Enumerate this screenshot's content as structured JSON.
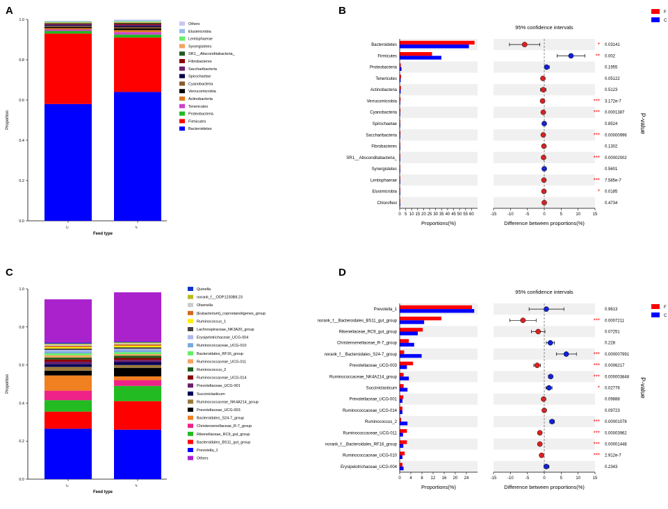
{
  "panel_labels": [
    "A",
    "B",
    "C",
    "D"
  ],
  "chart_data": [
    {
      "panel": "A",
      "type": "bar",
      "stacked": true,
      "xlabel": "Feed type",
      "ylabel": "Proportion",
      "categories": [
        "C",
        "F"
      ],
      "ylim": [
        0,
        1
      ],
      "yticks": [
        "0.0",
        "0.2",
        "0.4",
        "0.6",
        "0.8",
        "1.0"
      ],
      "series": [
        {
          "name": "Bacteroidetes",
          "color": "#0000FF",
          "values": [
            0.58,
            0.64
          ]
        },
        {
          "name": "Firmicutes",
          "color": "#FF0000",
          "values": [
            0.35,
            0.27
          ]
        },
        {
          "name": "Proteobacteria",
          "color": "#22BB22",
          "values": [
            0.013,
            0.015
          ]
        },
        {
          "name": "Tenericutes",
          "color": "#CC44CC",
          "values": [
            0.007,
            0.012
          ]
        },
        {
          "name": "Actinobacteria",
          "color": "#E07A1F",
          "values": [
            0.007,
            0.01
          ]
        },
        {
          "name": "Verrucomicrobia",
          "color": "#000000",
          "values": [
            0.006,
            0.008
          ]
        },
        {
          "name": "Cyanobacteria",
          "color": "#8B5A2B",
          "values": [
            0.005,
            0.007
          ]
        },
        {
          "name": "Spirochaetae",
          "color": "#00004D",
          "values": [
            0.004,
            0.006
          ]
        },
        {
          "name": "Saccharibacteria",
          "color": "#6B1F6B",
          "values": [
            0.004,
            0.006
          ]
        },
        {
          "name": "Fibrobacteres",
          "color": "#8B0000",
          "values": [
            0.003,
            0.005
          ]
        },
        {
          "name": "SR1__Absconditabacteria_",
          "color": "#1F5C1F",
          "values": [
            0.003,
            0.004
          ]
        },
        {
          "name": "Synergistetes",
          "color": "#F4A460",
          "values": [
            0.003,
            0.004
          ]
        },
        {
          "name": "Lentisphaerae",
          "color": "#66EE66",
          "values": [
            0.003,
            0.004
          ]
        },
        {
          "name": "Elusimicrobia",
          "color": "#99BBEE",
          "values": [
            0.003,
            0.004
          ]
        },
        {
          "name": "Others",
          "color": "#C8C8F0",
          "values": [
            0.002,
            0.004
          ]
        }
      ]
    },
    {
      "panel": "B",
      "type": "bar",
      "title": "95% confidence intervals",
      "left_xlabel": "Proportions(%)",
      "right_xlabel": "Difference between proportions(%)",
      "side_label": "P-value",
      "left_xlim": [
        0,
        65
      ],
      "left_xticks": [
        0,
        5,
        10,
        15,
        20,
        25,
        30,
        35,
        40,
        45,
        50,
        55,
        60
      ],
      "right_xlim": [
        -15,
        15
      ],
      "right_xticks": [
        -15,
        -10,
        -5,
        0,
        5,
        10,
        15
      ],
      "legend": [
        {
          "name": "F",
          "color": "#FF0000"
        },
        {
          "name": "C",
          "color": "#0000FF"
        }
      ],
      "rows": [
        {
          "name": "Bacteroidetes",
          "F": 62.5,
          "C": 57.8,
          "diff": -5.8,
          "lo": -10.3,
          "hi": -1.3,
          "higher": "F",
          "sig": "*",
          "p": "0.03141"
        },
        {
          "name": "Firmicutes",
          "F": 27.0,
          "C": 34.8,
          "diff": 7.9,
          "lo": 3.8,
          "hi": 12.0,
          "higher": "C",
          "sig": "**",
          "p": "0.002"
        },
        {
          "name": "Proteobacteria",
          "F": 0.9,
          "C": 1.5,
          "diff": 0.7,
          "lo": 0.1,
          "hi": 1.5,
          "higher": "C",
          "sig": "",
          "p": "0.1955"
        },
        {
          "name": "Tenericutes",
          "F": 1.1,
          "C": 0.8,
          "diff": -0.4,
          "lo": -0.8,
          "hi": 0.0,
          "higher": "F",
          "sig": "",
          "p": "0.05122"
        },
        {
          "name": "Actinobacteria",
          "F": 1.0,
          "C": 0.8,
          "diff": -0.3,
          "lo": -1.1,
          "hi": 0.5,
          "higher": "F",
          "sig": "",
          "p": "0.5123"
        },
        {
          "name": "Verrucomicrobia",
          "F": 0.7,
          "C": 0.3,
          "diff": -0.5,
          "lo": -0.7,
          "hi": -0.3,
          "higher": "F",
          "sig": "***",
          "p": "3.172e-7"
        },
        {
          "name": "Cyanobacteria",
          "F": 0.6,
          "C": 0.3,
          "diff": -0.3,
          "lo": -0.5,
          "hi": -0.2,
          "higher": "F",
          "sig": "***",
          "p": "0.0001387"
        },
        {
          "name": "Spirochaetae",
          "F": 0.4,
          "C": 0.4,
          "diff": 0.0,
          "lo": -0.2,
          "hi": 0.2,
          "higher": "C",
          "sig": "",
          "p": "0.8524"
        },
        {
          "name": "Saccharibacteria",
          "F": 0.6,
          "C": 0.3,
          "diff": -0.3,
          "lo": -0.4,
          "hi": -0.2,
          "higher": "F",
          "sig": "***",
          "p": "0.00000996"
        },
        {
          "name": "Fibrobacteres",
          "F": 0.3,
          "C": 0.2,
          "diff": -0.1,
          "lo": -0.2,
          "hi": 0.0,
          "higher": "F",
          "sig": "",
          "p": "0.1302"
        },
        {
          "name": "SR1__Absconditabacteria_",
          "F": 0.3,
          "C": 0.1,
          "diff": -0.2,
          "lo": -0.3,
          "hi": -0.1,
          "higher": "F",
          "sig": "***",
          "p": "0.00002002"
        },
        {
          "name": "Synergistetes",
          "F": 0.2,
          "C": 0.2,
          "diff": 0.0,
          "lo": -0.1,
          "hi": 0.1,
          "higher": "C",
          "sig": "",
          "p": "0.5601"
        },
        {
          "name": "Lentisphaerae",
          "F": 0.2,
          "C": 0.1,
          "diff": -0.1,
          "lo": -0.15,
          "hi": -0.05,
          "higher": "F",
          "sig": "***",
          "p": "7.585e-7"
        },
        {
          "name": "Elusimicrobia",
          "F": 0.2,
          "C": 0.1,
          "diff": -0.1,
          "lo": -0.2,
          "hi": 0.0,
          "higher": "F",
          "sig": "*",
          "p": "0.0185"
        },
        {
          "name": "Chloroflexi",
          "F": 0.1,
          "C": 0.1,
          "diff": 0.0,
          "lo": -0.1,
          "hi": 0.1,
          "higher": "F",
          "sig": "",
          "p": "0.4734"
        }
      ]
    },
    {
      "panel": "C",
      "type": "bar",
      "stacked": true,
      "xlabel": "Feed type",
      "ylabel": "Proportion",
      "categories": [
        "C",
        "F"
      ],
      "ylim": [
        0,
        1
      ],
      "yticks": [
        "0.0",
        "0.2",
        "0.4",
        "0.6",
        "0.8",
        "1.0"
      ],
      "series": [
        {
          "name": "Prevotella_1",
          "color": "#0000FF",
          "values": [
            0.265,
            0.26
          ]
        },
        {
          "name": "Bacteroidales_BS11_gut_group",
          "color": "#FF0000",
          "values": [
            0.09,
            0.15
          ]
        },
        {
          "name": "Rikenellaceae_RC9_gut_group",
          "color": "#22BB22",
          "values": [
            0.06,
            0.08
          ]
        },
        {
          "name": "Christensenellaceae_R-7_group",
          "color": "#EE2288",
          "values": [
            0.05,
            0.03
          ]
        },
        {
          "name": "Bacteroidales_S24-7_group",
          "color": "#F08020",
          "values": [
            0.08,
            0.02
          ]
        },
        {
          "name": "Prevotellaceae_UCG-003",
          "color": "#000000",
          "values": [
            0.025,
            0.045
          ]
        },
        {
          "name": "Ruminococcaceae_NK4A214_group",
          "color": "#9A7A3A",
          "values": [
            0.02,
            0.015
          ]
        },
        {
          "name": "Succiniclasticum",
          "color": "#00005A",
          "values": [
            0.015,
            0.015
          ]
        },
        {
          "name": "Prevotellaceae_UCG-001",
          "color": "#6B1F6B",
          "values": [
            0.012,
            0.012
          ]
        },
        {
          "name": "Ruminococcaceae_UCG-014",
          "color": "#8B0000",
          "values": [
            0.012,
            0.01
          ]
        },
        {
          "name": "Ruminococcus_2",
          "color": "#1F5C1F",
          "values": [
            0.01,
            0.012
          ]
        },
        {
          "name": "Ruminococcaceae_UCG-011",
          "color": "#F4A460",
          "values": [
            0.012,
            0.008
          ]
        },
        {
          "name": "Bacteroidales_RF16_group",
          "color": "#66EE66",
          "values": [
            0.01,
            0.01
          ]
        },
        {
          "name": "Ruminococcaceae_UCG-010",
          "color": "#77AADD",
          "values": [
            0.01,
            0.01
          ]
        },
        {
          "name": "Erysipelotrichaceae_UCG-004",
          "color": "#AABBEE",
          "values": [
            0.008,
            0.008
          ]
        },
        {
          "name": "Lachnospiraceae_NK3A20_group",
          "color": "#444444",
          "values": [
            0.008,
            0.008
          ]
        },
        {
          "name": "Ruminococcus_1",
          "color": "#FFEE00",
          "values": [
            0.007,
            0.008
          ]
        },
        {
          "name": "[Eubacterium]_coprostanoligenes_group",
          "color": "#D2691E",
          "values": [
            0.007,
            0.007
          ]
        },
        {
          "name": "Olsenella",
          "color": "#CCCCCC",
          "values": [
            0.006,
            0.006
          ]
        },
        {
          "name": "norank_f__ODP1230B8.23",
          "color": "#BBBB22",
          "values": [
            0.005,
            0.005
          ]
        },
        {
          "name": "Quinella",
          "color": "#1133CC",
          "values": [
            0.005,
            0.004
          ]
        },
        {
          "name": "Others",
          "color": "#AA22CC",
          "values": [
            0.228,
            0.259
          ]
        }
      ],
      "legend_order": [
        "Quinella",
        "norank_f__ODP1230B8.23",
        "Olsenella",
        "[Eubacterium]_coprostanoligenes_group",
        "Ruminococcus_1",
        "Lachnospiraceae_NK3A20_group",
        "Erysipelotrichaceae_UCG-004",
        "Ruminococcaceae_UCG-010",
        "Bacteroidales_RF16_group",
        "Ruminococcaceae_UCG-011",
        "Ruminococcus_2",
        "Ruminococcaceae_UCG-014",
        "Prevotellaceae_UCG-001",
        "Succiniclasticum",
        "Ruminococcaceae_NK4A214_group",
        "Prevotellaceae_UCG-003",
        "Bacteroidales_S24-7_group",
        "Christensenellaceae_R-7_group",
        "Rikenellaceae_RC9_gut_group",
        "Bacteroidales_BS11_gut_group",
        "Prevotella_1",
        "Others"
      ]
    },
    {
      "panel": "D",
      "type": "bar",
      "title": "95% confidence intervals",
      "left_xlabel": "Proportions(%)",
      "right_xlabel": "Difference between proportions(%)",
      "side_label": "P-value",
      "left_xlim": [
        0,
        28
      ],
      "left_xticks": [
        0,
        4,
        8,
        12,
        16,
        20,
        24
      ],
      "right_xlim": [
        -15,
        15
      ],
      "right_xticks": [
        -15,
        -10,
        -5,
        0,
        5,
        10,
        15
      ],
      "legend": [
        {
          "name": "F",
          "color": "#FF0000"
        },
        {
          "name": "C",
          "color": "#0000FF"
        }
      ],
      "rows": [
        {
          "name": "Prevotella_1",
          "F": 26.0,
          "C": 26.8,
          "diff": 0.6,
          "lo": -4.5,
          "hi": 5.8,
          "higher": "C",
          "sig": "",
          "p": "0.9613"
        },
        {
          "name": "norank_f__Bacteroidales_BS11_gut_group",
          "F": 15.0,
          "C": 8.8,
          "diff": -6.3,
          "lo": -10.2,
          "hi": -2.4,
          "higher": "F",
          "sig": "***",
          "p": "0.0007211"
        },
        {
          "name": "Rikenellaceae_RC9_gut_group",
          "F": 8.3,
          "C": 6.5,
          "diff": -1.8,
          "lo": -3.8,
          "hi": 0.2,
          "higher": "F",
          "sig": "",
          "p": "0.07251"
        },
        {
          "name": "Christensenellaceae_R-7_group",
          "F": 3.3,
          "C": 5.2,
          "diff": 1.8,
          "lo": 0.6,
          "hi": 3.0,
          "higher": "C",
          "sig": "",
          "p": "0.228"
        },
        {
          "name": "norank_f__Bacteroidales_S24-7_group",
          "F": 1.6,
          "C": 7.9,
          "diff": 6.5,
          "lo": 3.6,
          "hi": 9.5,
          "higher": "C",
          "sig": "***",
          "p": "0.000007991"
        },
        {
          "name": "Prevotellaceae_UCG-003",
          "F": 4.8,
          "C": 2.6,
          "diff": -2.1,
          "lo": -3.1,
          "hi": -1.1,
          "higher": "F",
          "sig": "***",
          "p": "0.0006217"
        },
        {
          "name": "Ruminococcaceae_NK4A214_group",
          "F": 1.4,
          "C": 3.3,
          "diff": 1.9,
          "lo": 1.2,
          "hi": 2.5,
          "higher": "C",
          "sig": "***",
          "p": "0.000003848"
        },
        {
          "name": "Succiniclasticum",
          "F": 1.4,
          "C": 2.8,
          "diff": 1.4,
          "lo": 0.5,
          "hi": 2.3,
          "higher": "C",
          "sig": "*",
          "p": "0.02776"
        },
        {
          "name": "Prevotellaceae_UCG-001",
          "F": 1.3,
          "C": 1.0,
          "diff": -0.2,
          "lo": -0.6,
          "hi": 0.2,
          "higher": "F",
          "sig": "",
          "p": "0.09888"
        },
        {
          "name": "Ruminococcaceae_UCG-014",
          "F": 1.0,
          "C": 1.0,
          "diff": 0.0,
          "lo": -0.4,
          "hi": 0.4,
          "higher": "F",
          "sig": "",
          "p": "0.09723"
        },
        {
          "name": "Ruminococcus_2",
          "F": 0.5,
          "C": 2.8,
          "diff": 2.3,
          "lo": 1.6,
          "hi": 3.0,
          "higher": "C",
          "sig": "***",
          "p": "0.00001078"
        },
        {
          "name": "Ruminococcaceae_UCG-011",
          "F": 2.6,
          "C": 1.2,
          "diff": -1.3,
          "lo": -1.9,
          "hi": -0.8,
          "higher": "F",
          "sig": "***",
          "p": "0.00003962"
        },
        {
          "name": "norank_f__Bacteroidales_RF16_group",
          "F": 2.6,
          "C": 1.3,
          "diff": -1.3,
          "lo": -1.9,
          "hi": -0.8,
          "higher": "F",
          "sig": "***",
          "p": "0.00001448"
        },
        {
          "name": "Ruminococcaceae_UCG-010",
          "F": 1.8,
          "C": 1.0,
          "diff": -0.8,
          "lo": -1.1,
          "hi": -0.5,
          "higher": "F",
          "sig": "***",
          "p": "2.912e-7"
        },
        {
          "name": "Erysipelotrichaceae_UCG-004",
          "F": 1.0,
          "C": 1.4,
          "diff": 0.6,
          "lo": -0.1,
          "hi": 1.4,
          "higher": "C",
          "sig": "",
          "p": "0.2343"
        }
      ]
    }
  ]
}
